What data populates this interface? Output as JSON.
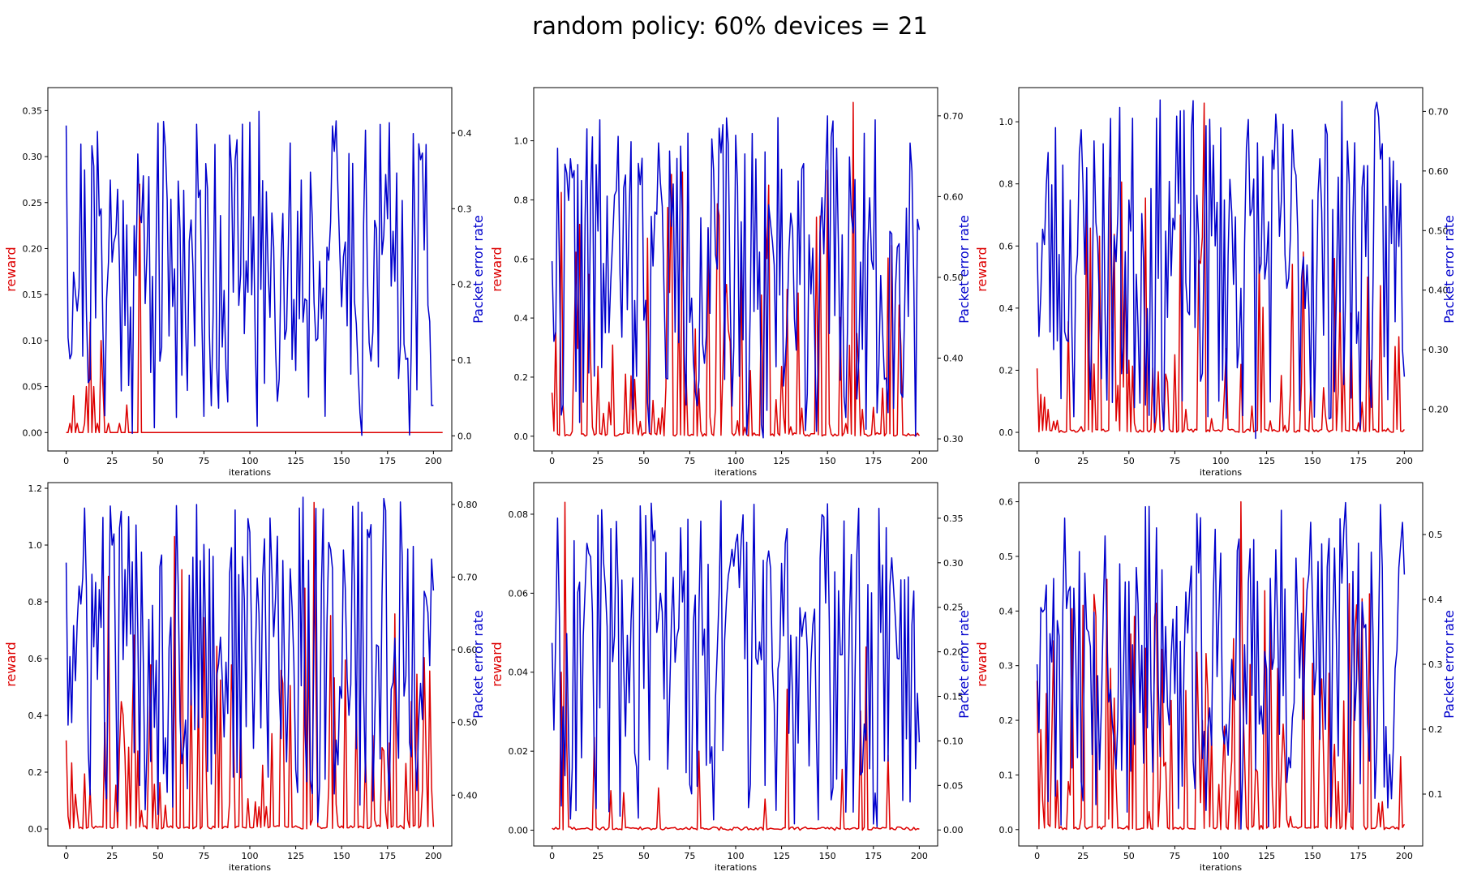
{
  "title": "random policy: 60% devices = 21",
  "colors": {
    "reward": "#dd0000",
    "per": "#0000cc"
  },
  "chart_data": [
    {
      "type": "line",
      "xlabel": "iterations",
      "ylabel_left": "reward",
      "ylabel_right": "Packet error rate",
      "xlim": [
        -10,
        210
      ],
      "xticks": [
        0,
        25,
        50,
        75,
        100,
        125,
        150,
        175,
        200
      ],
      "ylim_left": [
        -0.02,
        0.375
      ],
      "yticks_left": [
        0.0,
        0.05,
        0.1,
        0.15,
        0.2,
        0.25,
        0.3,
        0.35
      ],
      "ylim_right": [
        -0.02,
        0.46
      ],
      "yticks_right": [
        0.0,
        0.1,
        0.2,
        0.3,
        0.4
      ],
      "series": [
        {
          "name": "reward",
          "axis": "left",
          "color": "#dd0000",
          "y": [
            0.0,
            0.0,
            0.01,
            0.0,
            0.04,
            0.0,
            0.01,
            0.0,
            0.0,
            0.0,
            0.01,
            0.05,
            0.0,
            0.12,
            0.0,
            0.05,
            0.0,
            0.01,
            0.0,
            0.1,
            0.05,
            0.0,
            0.0,
            0.01,
            0.0,
            0.0,
            0.0,
            0.0,
            0.0,
            0.01,
            0.0,
            0.0,
            0.0,
            0.03,
            0.0,
            0.0,
            0.0,
            0.0,
            0.0,
            0.0,
            0.27,
            0.0,
            0.0,
            0.0,
            0.0,
            0.0,
            0.0,
            0.0,
            0.0,
            0.0,
            0.0,
            0.0,
            0.0,
            0.0,
            0.0,
            0.0,
            0.0,
            0.0,
            0.0,
            0.0,
            0.0,
            0.0,
            0.0,
            0.0,
            0.0,
            0.0,
            0.0,
            0.0,
            0.0,
            0.0,
            0.0,
            0.0,
            0.0,
            0.0,
            0.0,
            0.0,
            0.0,
            0.0,
            0.0,
            0.0,
            0.0,
            0.0,
            0.0,
            0.0,
            0.0,
            0.0,
            0.0,
            0.0,
            0.0,
            0.0,
            0.0,
            0.0,
            0.0,
            0.0,
            0.0,
            0.0,
            0.0,
            0.0,
            0.0,
            0.0,
            0.0,
            0.0,
            0.0,
            0.0,
            0.0,
            0.0,
            0.0,
            0.0,
            0.0,
            0.0,
            0.0,
            0.0,
            0.0,
            0.0,
            0.0,
            0.0,
            0.0,
            0.0,
            0.0,
            0.0,
            0.0,
            0.0,
            0.0,
            0.0,
            0.0,
            0.0,
            0.0,
            0.0,
            0.0,
            0.0,
            0.0,
            0.0,
            0.0,
            0.0,
            0.0,
            0.0,
            0.0,
            0.0,
            0.0,
            0.0,
            0.0,
            0.0,
            0.0,
            0.0,
            0.0,
            0.0,
            0.0,
            0.0,
            0.0,
            0.0,
            0.0,
            0.0,
            0.0,
            0.0,
            0.0,
            0.0,
            0.0,
            0.0,
            0.0,
            0.0,
            0.0,
            0.0,
            0.0,
            0.0,
            0.0,
            0.0,
            0.0,
            0.0,
            0.0,
            0.0,
            0.0,
            0.0,
            0.0,
            0.0,
            0.0,
            0.0,
            0.0,
            0.0,
            0.0,
            0.0,
            0.0,
            0.0,
            0.0,
            0.0,
            0.0,
            0.0,
            0.0,
            0.0,
            0.0,
            0.0,
            0.0,
            0.0,
            0.0,
            0.0,
            0.0,
            0.0,
            0.0,
            0.0,
            0.0,
            0.0,
            0.0,
            0.0,
            0.0,
            0.0,
            0.0,
            0.0
          ]
        },
        {
          "name": "Packet error rate",
          "axis": "right",
          "color": "#0000cc",
          "y": []
        }
      ]
    },
    {
      "type": "line",
      "xlabel": "iterations",
      "ylabel_left": "reward",
      "ylabel_right": "Packet error rate",
      "xlim": [
        -10,
        210
      ],
      "xticks": [
        0,
        25,
        50,
        75,
        100,
        125,
        150,
        175,
        200
      ],
      "ylim_left": [
        -0.05,
        1.18
      ],
      "yticks_left": [
        0.0,
        0.2,
        0.4,
        0.6,
        0.8,
        1.0
      ],
      "ylim_right": [
        0.285,
        0.735
      ],
      "yticks_right": [
        0.3,
        0.4,
        0.5,
        0.6,
        0.7
      ],
      "series": [
        {
          "name": "reward",
          "axis": "left",
          "color": "#dd0000",
          "y": []
        },
        {
          "name": "Packet error rate",
          "axis": "right",
          "color": "#0000cc",
          "y": []
        }
      ]
    },
    {
      "type": "line",
      "xlabel": "iterations",
      "ylabel_left": "reward",
      "ylabel_right": "Packet error rate",
      "xlim": [
        -10,
        210
      ],
      "xticks": [
        0,
        25,
        50,
        75,
        100,
        125,
        150,
        175,
        200
      ],
      "ylim_left": [
        -0.06,
        1.11
      ],
      "yticks_left": [
        0.0,
        0.2,
        0.4,
        0.6,
        0.8,
        1.0
      ],
      "ylim_right": [
        0.13,
        0.74
      ],
      "yticks_right": [
        0.2,
        0.3,
        0.4,
        0.5,
        0.6,
        0.7
      ],
      "series": [
        {
          "name": "reward",
          "axis": "left",
          "color": "#dd0000",
          "y": []
        },
        {
          "name": "Packet error rate",
          "axis": "right",
          "color": "#0000cc",
          "y": []
        }
      ]
    },
    {
      "type": "line",
      "xlabel": "iterations",
      "ylabel_left": "reward",
      "ylabel_right": "Packet error rate",
      "xlim": [
        -10,
        210
      ],
      "xticks": [
        0,
        25,
        50,
        75,
        100,
        125,
        150,
        175,
        200
      ],
      "ylim_left": [
        -0.06,
        1.22
      ],
      "yticks_left": [
        0.0,
        0.2,
        0.4,
        0.6,
        0.8,
        1.0,
        1.2
      ],
      "ylim_right": [
        0.33,
        0.83
      ],
      "yticks_right": [
        0.4,
        0.5,
        0.6,
        0.7,
        0.8
      ],
      "series": [
        {
          "name": "reward",
          "axis": "left",
          "color": "#dd0000",
          "y": []
        },
        {
          "name": "Packet error rate",
          "axis": "right",
          "color": "#0000cc",
          "y": []
        }
      ]
    },
    {
      "type": "line",
      "xlabel": "iterations",
      "ylabel_left": "reward",
      "ylabel_right": "Packet error rate",
      "xlim": [
        -10,
        210
      ],
      "xticks": [
        0,
        25,
        50,
        75,
        100,
        125,
        150,
        175,
        200
      ],
      "ylim_left": [
        -0.004,
        0.088
      ],
      "yticks_left": [
        0.0,
        0.02,
        0.04,
        0.06,
        0.08
      ],
      "ylim_right": [
        -0.018,
        0.39
      ],
      "yticks_right": [
        0.0,
        0.05,
        0.1,
        0.15,
        0.2,
        0.25,
        0.3,
        0.35
      ],
      "series": [
        {
          "name": "reward",
          "axis": "left",
          "color": "#dd0000",
          "y": []
        },
        {
          "name": "Packet error rate",
          "axis": "right",
          "color": "#0000cc",
          "y": []
        }
      ]
    },
    {
      "type": "line",
      "xlabel": "iterations",
      "ylabel_left": "reward",
      "ylabel_right": "Packet error rate",
      "xlim": [
        -10,
        210
      ],
      "xticks": [
        0,
        25,
        50,
        75,
        100,
        125,
        150,
        175,
        200
      ],
      "ylim_left": [
        -0.03,
        0.635
      ],
      "yticks_left": [
        0.0,
        0.1,
        0.2,
        0.3,
        0.4,
        0.5,
        0.6
      ],
      "ylim_right": [
        0.02,
        0.58
      ],
      "yticks_right": [
        0.1,
        0.2,
        0.3,
        0.4,
        0.5
      ],
      "series": [
        {
          "name": "reward",
          "axis": "left",
          "color": "#dd0000",
          "y": []
        },
        {
          "name": "Packet error rate",
          "axis": "right",
          "color": "#0000cc",
          "y": []
        }
      ]
    }
  ]
}
